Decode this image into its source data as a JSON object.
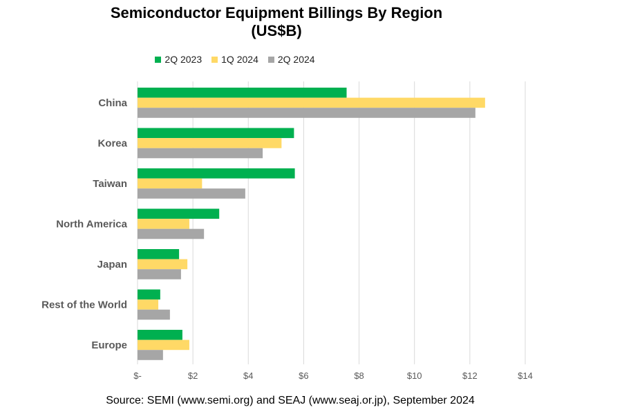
{
  "chart_data": {
    "type": "bar",
    "orientation": "horizontal",
    "title": "Semiconductor Equipment Billings By Region (US$B)",
    "title_lines": [
      "Semiconductor Equipment Billings By Region",
      "(US$B)"
    ],
    "categories": [
      "China",
      "Korea",
      "Taiwan",
      "North America",
      "Japan",
      "Rest of the World",
      "Europe"
    ],
    "series": [
      {
        "name": "2Q 2023",
        "color": "#00B050",
        "values": [
          7.55,
          5.65,
          5.68,
          2.95,
          1.5,
          0.82,
          1.62
        ]
      },
      {
        "name": "1Q 2024",
        "color": "#FFD966",
        "values": [
          12.55,
          5.2,
          2.33,
          1.87,
          1.8,
          0.75,
          1.87
        ]
      },
      {
        "name": "2Q 2024",
        "color": "#A6A6A6",
        "values": [
          12.2,
          4.52,
          3.89,
          2.4,
          1.57,
          1.17,
          0.92
        ]
      }
    ],
    "xlim": [
      0,
      14
    ],
    "xticks": [
      0,
      2,
      4,
      6,
      8,
      10,
      12,
      14
    ],
    "xtick_labels": [
      "$-",
      "$2",
      "$4",
      "$6",
      "$8",
      "$10",
      "$12",
      "$14"
    ],
    "xlabel": "",
    "ylabel": "",
    "grid": "vertical",
    "legend_position": "top"
  },
  "source": "Source: SEMI (www.semi.org) and SEAJ (www.seaj.or.jp), September 2024"
}
